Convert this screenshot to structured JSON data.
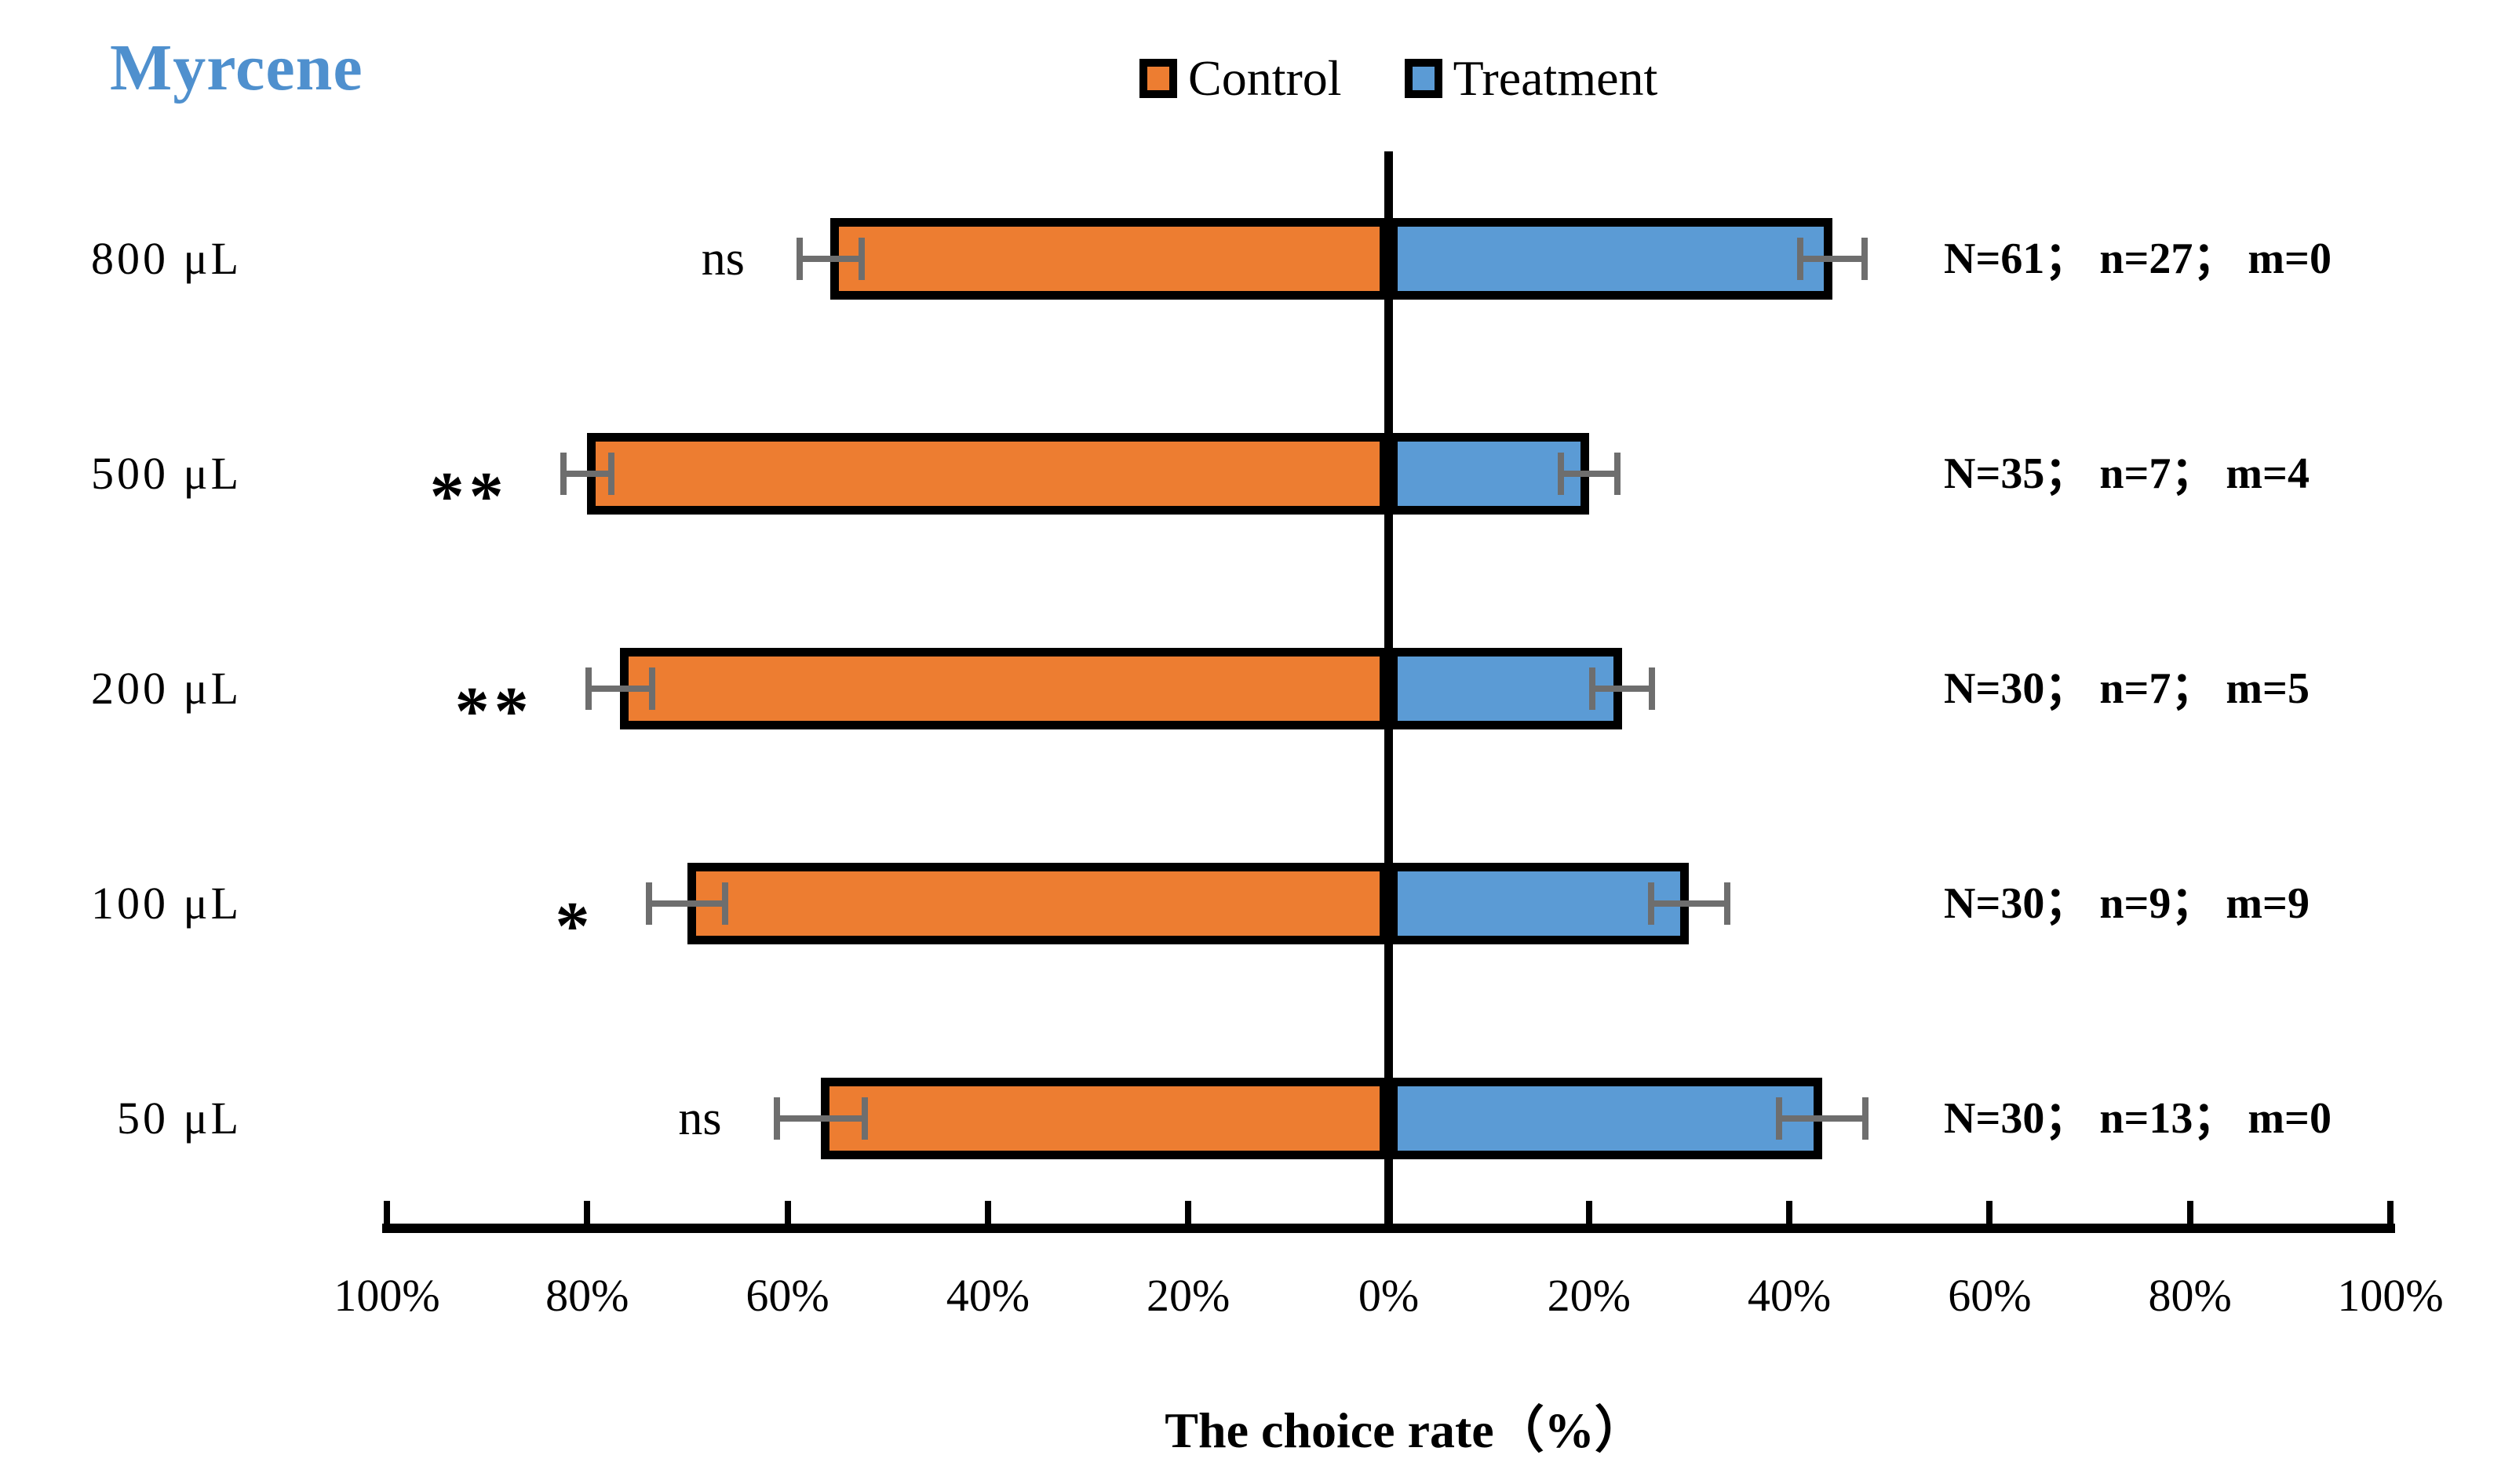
{
  "title": {
    "text": "Myrcene",
    "color": "#4F90CE"
  },
  "legend": {
    "items": [
      {
        "label": "Control",
        "color": "#ED7D31"
      },
      {
        "label": "Treatment",
        "color": "#5B9BD5"
      }
    ]
  },
  "axis": {
    "xlabel": "The choice rate（%）",
    "tick_labels": [
      "100%",
      "80%",
      "60%",
      "40%",
      "20%",
      "0%",
      "20%",
      "40%",
      "60%",
      "80%",
      "100%"
    ]
  },
  "chart_data": {
    "type": "bar",
    "subtype": "diverging-horizontal",
    "title": "Myrcene",
    "categories": [
      "800 μL",
      "500 μL",
      "200 μL",
      "100 μL",
      "50 μL"
    ],
    "series": [
      {
        "name": "Control",
        "side": "left",
        "color": "#ED7D31",
        "values": [
          55.7,
          80.0,
          76.7,
          70.0,
          56.7
        ],
        "errors": [
          3.1,
          2.4,
          3.2,
          3.8,
          4.4
        ]
      },
      {
        "name": "Treatment",
        "side": "right",
        "color": "#5B9BD5",
        "values": [
          44.3,
          20.0,
          23.3,
          30.0,
          43.3
        ],
        "errors": [
          3.2,
          2.8,
          3.0,
          3.8,
          4.3
        ]
      }
    ],
    "significance": [
      "ns",
      "**",
      "**",
      "*",
      "ns"
    ],
    "annotations": [
      "N=61； n=27； m=0",
      "N=35； n=7； m=4",
      "N=30； n=7； m=5",
      "N=30； n=9； m=9",
      "N=30； n=13； m=0"
    ],
    "xlabel": "The choice rate（%）",
    "x_axis": {
      "min": -100,
      "max": 100,
      "tick_step": 20,
      "unit": "%",
      "mirrored_labels": true
    },
    "legend_position": "top-center",
    "error_bar_color": "#6E6E6E"
  }
}
